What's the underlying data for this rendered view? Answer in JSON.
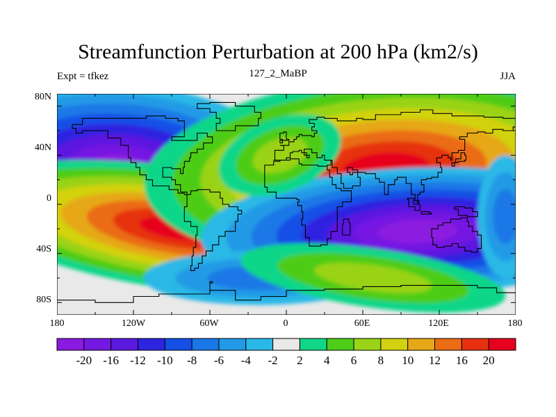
{
  "title": "Streamfunction Perturbation at 200 hPa (km2/s)",
  "subtitle_left": "Expt = tfkez",
  "subtitle_center": "127_2_MaBP",
  "subtitle_right": "JJA",
  "y_ticks": [
    "80N",
    "40N",
    "0",
    "40S",
    "80S"
  ],
  "x_ticks": [
    "180",
    "120W",
    "60W",
    "0",
    "60E",
    "120E",
    "180"
  ],
  "colorbar": {
    "colors": [
      "#8b1ae0",
      "#7418e2",
      "#5b19e0",
      "#2d24e0",
      "#1450e6",
      "#1a78e6",
      "#229ae6",
      "#2ab8e6",
      "#e9e9e9",
      "#10d688",
      "#4dcc18",
      "#9ad318",
      "#d2d210",
      "#e6a818",
      "#ea6c14",
      "#e63010",
      "#e6001e"
    ],
    "labels": [
      "-20",
      "-16",
      "-12",
      "-10",
      "-8",
      "-6",
      "-4",
      "-2",
      "2",
      "4",
      "6",
      "8",
      "10",
      "12",
      "16",
      "20"
    ]
  },
  "chart_data": {
    "type": "heatmap",
    "title": "Streamfunction Perturbation at 200 hPa (km2/s)",
    "xlabel": "",
    "ylabel": "",
    "xlim": [
      -180,
      180
    ],
    "ylim": [
      -90,
      90
    ],
    "levels": [
      -20,
      -16,
      -12,
      -10,
      -8,
      -6,
      -4,
      -2,
      2,
      4,
      6,
      8,
      10,
      12,
      16,
      20
    ],
    "features": [
      {
        "type": "low",
        "lon": -130,
        "lat": 32,
        "value": -20
      },
      {
        "type": "high",
        "lon": -75,
        "lat": -20,
        "value": 22
      },
      {
        "type": "high",
        "lon": 85,
        "lat": 33,
        "value": 22
      },
      {
        "type": "low",
        "lon": 100,
        "lat": -25,
        "value": -20
      },
      {
        "type": "low",
        "lon": -20,
        "lat": -60,
        "value": -6
      },
      {
        "type": "high",
        "lon": 70,
        "lat": -62,
        "value": 7
      }
    ]
  }
}
